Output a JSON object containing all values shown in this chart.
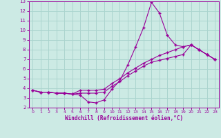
{
  "xlabel": "Windchill (Refroidissement éolien,°C)",
  "background_color": "#cceae4",
  "grid_color": "#aad4ce",
  "line_color": "#990099",
  "xlim": [
    -0.5,
    23.5
  ],
  "ylim": [
    2,
    13
  ],
  "xticks": [
    0,
    1,
    2,
    3,
    4,
    5,
    6,
    7,
    8,
    9,
    10,
    11,
    12,
    13,
    14,
    15,
    16,
    17,
    18,
    19,
    20,
    21,
    22,
    23
  ],
  "yticks": [
    2,
    3,
    4,
    5,
    6,
    7,
    8,
    9,
    10,
    11,
    12,
    13
  ],
  "series": [
    [
      3.8,
      3.6,
      3.6,
      3.5,
      3.5,
      3.4,
      3.3,
      2.6,
      2.5,
      2.8,
      3.9,
      4.8,
      6.4,
      8.3,
      10.3,
      12.9,
      11.8,
      9.5,
      8.5,
      8.3,
      8.5,
      8.0,
      7.5,
      7.0
    ],
    [
      3.8,
      3.6,
      3.6,
      3.5,
      3.5,
      3.4,
      3.8,
      3.8,
      3.8,
      3.9,
      4.5,
      5.0,
      5.6,
      6.1,
      6.6,
      7.0,
      7.4,
      7.7,
      8.0,
      8.3,
      8.5,
      8.0,
      7.5,
      7.0
    ],
    [
      3.8,
      3.6,
      3.6,
      3.5,
      3.5,
      3.4,
      3.5,
      3.5,
      3.5,
      3.6,
      4.2,
      4.7,
      5.3,
      5.8,
      6.3,
      6.7,
      6.9,
      7.1,
      7.3,
      7.5,
      8.5,
      8.0,
      7.5,
      7.0
    ]
  ]
}
